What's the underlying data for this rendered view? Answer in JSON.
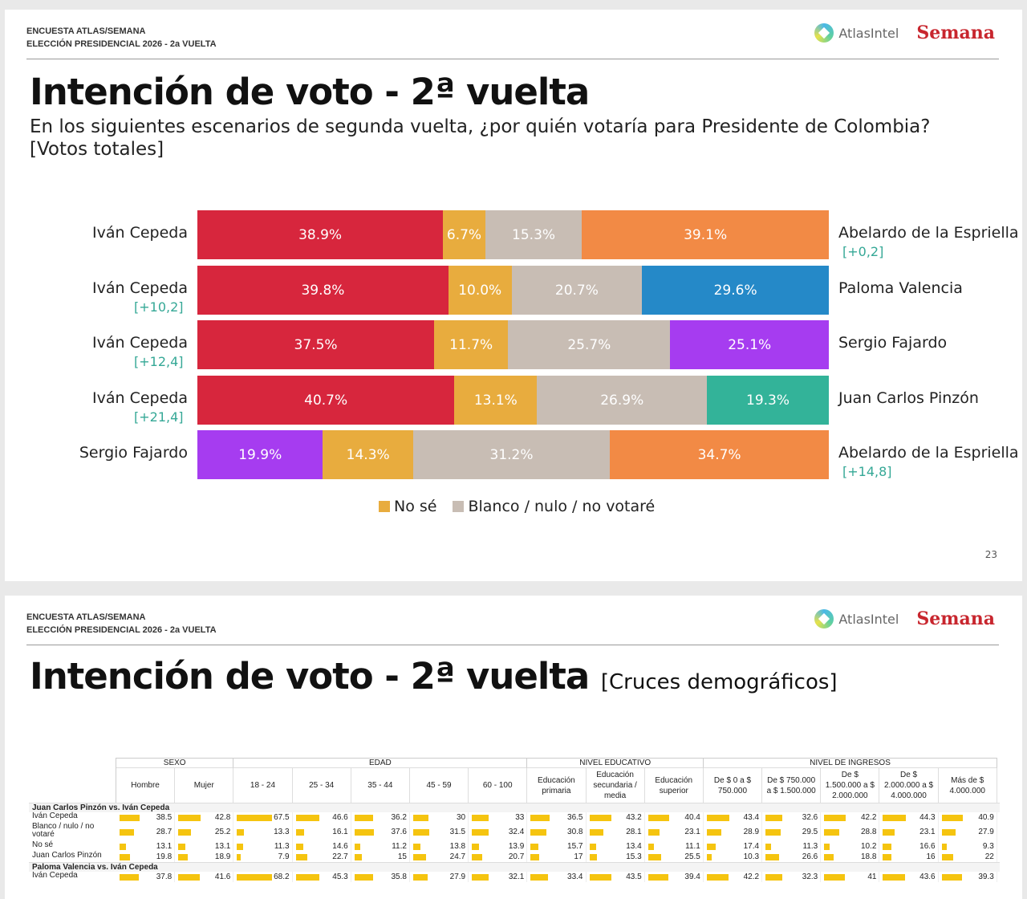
{
  "header": {
    "line1": "ENCUESTA ATLAS/SEMANA",
    "line2": "ELECCIÓN PRESIDENCIAL 2026 - 2a VUELTA",
    "logo1": "AtlasIntel",
    "logo2": "Semana"
  },
  "slide1": {
    "title": "Intención de voto - 2ª vuelta",
    "subtitle": "En los siguientes escenarios de segunda vuelta, ¿por quién votaría para Presidente de Colombia? [Votos totales]",
    "page": "23"
  },
  "chart_data": {
    "type": "bar",
    "stacked": true,
    "orientation": "horizontal",
    "legend": [
      "No sé",
      "Blanco / nulo / no votaré"
    ],
    "legend_position": "bottom",
    "colors": {
      "Iván Cepeda": "#d7263d",
      "No sé": "#e8ac3e",
      "Blanco": "#c8bdb4",
      "Abelardo de la Espriella": "#f28a45",
      "Paloma Valencia": "#2589c8",
      "Sergio Fajardo": "#a63cf0",
      "Juan Carlos Pinzón": "#33b399"
    },
    "rows": [
      {
        "left": "Iván Cepeda",
        "right": "Abelardo de la Espriella",
        "lead": "[+0,2]",
        "lead_side": "right",
        "values": [
          38.9,
          6.7,
          15.3,
          39.1
        ],
        "labels": [
          "38.9%",
          "6.7%",
          "15.3%",
          "39.1%"
        ],
        "colors": [
          "#d7263d",
          "#e8ac3e",
          "#c8bdb4",
          "#f28a45"
        ]
      },
      {
        "left": "Iván Cepeda",
        "right": "Paloma Valencia",
        "lead": "[+10,2]",
        "lead_side": "left",
        "values": [
          39.8,
          10.0,
          20.7,
          29.6
        ],
        "labels": [
          "39.8%",
          "10.0%",
          "20.7%",
          "29.6%"
        ],
        "colors": [
          "#d7263d",
          "#e8ac3e",
          "#c8bdb4",
          "#2589c8"
        ]
      },
      {
        "left": "Iván Cepeda",
        "right": "Sergio Fajardo",
        "lead": "[+12,4]",
        "lead_side": "left",
        "values": [
          37.5,
          11.7,
          25.7,
          25.1
        ],
        "labels": [
          "37.5%",
          "11.7%",
          "25.7%",
          "25.1%"
        ],
        "colors": [
          "#d7263d",
          "#e8ac3e",
          "#c8bdb4",
          "#a63cf0"
        ]
      },
      {
        "left": "Iván Cepeda",
        "right": "Juan Carlos Pinzón",
        "lead": "[+21,4]",
        "lead_side": "left",
        "values": [
          40.7,
          13.1,
          26.9,
          19.3
        ],
        "labels": [
          "40.7%",
          "13.1%",
          "26.9%",
          "19.3%"
        ],
        "colors": [
          "#d7263d",
          "#e8ac3e",
          "#c8bdb4",
          "#33b399"
        ]
      },
      {
        "left": "Sergio Fajardo",
        "right": "Abelardo de la Espriella",
        "lead": "[+14,8]",
        "lead_side": "right",
        "values": [
          19.9,
          14.3,
          31.2,
          34.7
        ],
        "labels": [
          "19.9%",
          "14.3%",
          "31.2%",
          "34.7%"
        ],
        "colors": [
          "#a63cf0",
          "#e8ac3e",
          "#c8bdb4",
          "#f28a45"
        ]
      }
    ]
  },
  "slide2": {
    "title": "Intención de voto - 2ª vuelta",
    "title_suffix": "[Cruces demográficos]",
    "table": {
      "groups": [
        {
          "label": "SEXO",
          "span": 2
        },
        {
          "label": "EDAD",
          "span": 5
        },
        {
          "label": "NIVEL EDUCATIVO",
          "span": 3
        },
        {
          "label": "NIVEL DE INGRESOS",
          "span": 5
        }
      ],
      "columns": [
        "Hombre",
        "Mujer",
        "18 - 24",
        "25 - 34",
        "35 - 44",
        "45 - 59",
        "60 - 100",
        "Educación primaria",
        "Educación secundaria / media",
        "Educación superior",
        "De $ 0 a $ 750.000",
        "De $ 750.000 a $ 1.500.000",
        "De $ 1.500.000 a $ 2.000.000",
        "De $ 2.000.000 a $ 4.000.000",
        "Más de $ 4.000.000"
      ],
      "sections": [
        {
          "label": "Juan Carlos Pinzón vs. Iván Cepeda",
          "rows": [
            {
              "label": "Iván Cepeda",
              "values": [
                "38.5",
                "42.8",
                "67.5",
                "46.6",
                "36.2",
                "30",
                "33",
                "36.5",
                "43.2",
                "40.4",
                "43.4",
                "32.6",
                "42.2",
                "44.3",
                "40.9"
              ]
            },
            {
              "label": "Blanco / nulo / no votaré",
              "values": [
                "28.7",
                "25.2",
                "13.3",
                "16.1",
                "37.6",
                "31.5",
                "32.4",
                "30.8",
                "28.1",
                "23.1",
                "28.9",
                "29.5",
                "28.8",
                "23.1",
                "27.9"
              ]
            },
            {
              "label": "No sé",
              "values": [
                "13.1",
                "13.1",
                "11.3",
                "14.6",
                "11.2",
                "13.8",
                "13.9",
                "15.7",
                "13.4",
                "11.1",
                "17.4",
                "11.3",
                "10.2",
                "16.6",
                "9.3"
              ]
            },
            {
              "label": "Juan Carlos Pinzón",
              "values": [
                "19.8",
                "18.9",
                "7.9",
                "22.7",
                "15",
                "24.7",
                "20.7",
                "17",
                "15.3",
                "25.5",
                "10.3",
                "26.6",
                "18.8",
                "16",
                "22"
              ]
            }
          ]
        },
        {
          "label": "Paloma Valencia vs. Iván Cepeda",
          "rows": [
            {
              "label": "Iván Cepeda",
              "values": [
                "37.8",
                "41.6",
                "68.2",
                "45.3",
                "35.8",
                "27.9",
                "32.1",
                "33.4",
                "43.5",
                "39.4",
                "42.2",
                "32.3",
                "41",
                "43.6",
                "39.3"
              ]
            }
          ]
        }
      ]
    }
  }
}
